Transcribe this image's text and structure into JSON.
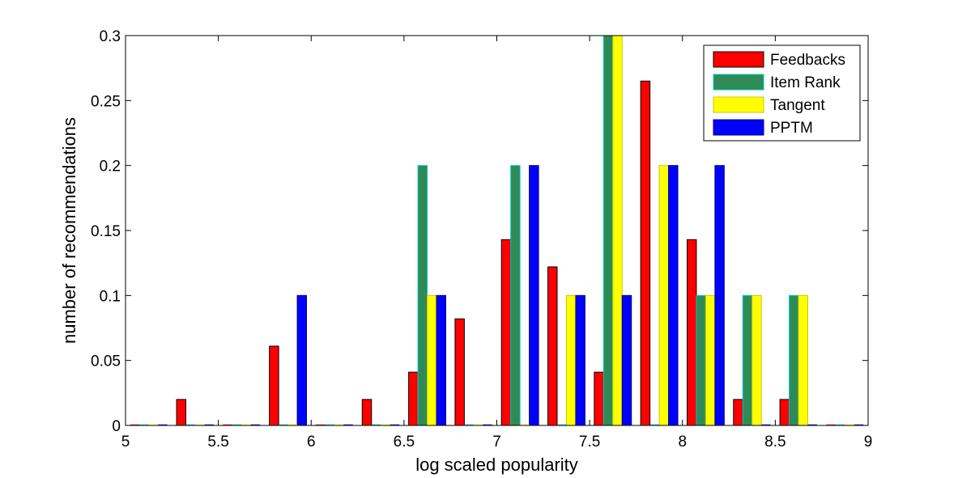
{
  "chart_data": {
    "type": "bar",
    "title": "",
    "xlabel": "log scaled popularity",
    "ylabel": "number of recommendations",
    "xlim": [
      5,
      9
    ],
    "ylim": [
      0,
      0.3
    ],
    "xticks": [
      "5",
      "5.5",
      "6",
      "6.5",
      "7",
      "7.5",
      "8",
      "8.5",
      "9"
    ],
    "yticks": [
      "0",
      "0.05",
      "0.1",
      "0.15",
      "0.2",
      "0.25",
      "0.3"
    ],
    "grid": false,
    "legend_position": "top-right",
    "bin_centers": [
      5.125,
      5.375,
      5.625,
      5.875,
      6.125,
      6.375,
      6.625,
      6.875,
      7.125,
      7.375,
      7.625,
      7.875,
      8.125,
      8.375,
      8.625,
      8.875
    ],
    "series": [
      {
        "name": "Feedbacks",
        "color": "#ff0000",
        "values": [
          0,
          0.02,
          0,
          0.061,
          0,
          0.02,
          0.041,
          0.082,
          0.143,
          0.122,
          0.041,
          0.265,
          0.143,
          0.02,
          0.02,
          0
        ]
      },
      {
        "name": "Item Rank",
        "color": "#2e8b57",
        "values": [
          0,
          0,
          0,
          0,
          0,
          0,
          0.2,
          0,
          0.2,
          0,
          0.3,
          0,
          0.1,
          0.1,
          0.1,
          0
        ]
      },
      {
        "name": "Tangent",
        "color": "#ffff00",
        "values": [
          0,
          0,
          0,
          0,
          0,
          0,
          0.1,
          0,
          0,
          0.1,
          0.3,
          0.2,
          0.1,
          0.1,
          0.1,
          0
        ]
      },
      {
        "name": "PPTM",
        "color": "#0000ff",
        "values": [
          0,
          0,
          0,
          0.1,
          0,
          0,
          0.1,
          0,
          0.2,
          0.1,
          0.1,
          0.2,
          0.2,
          0,
          0,
          0
        ]
      }
    ]
  }
}
